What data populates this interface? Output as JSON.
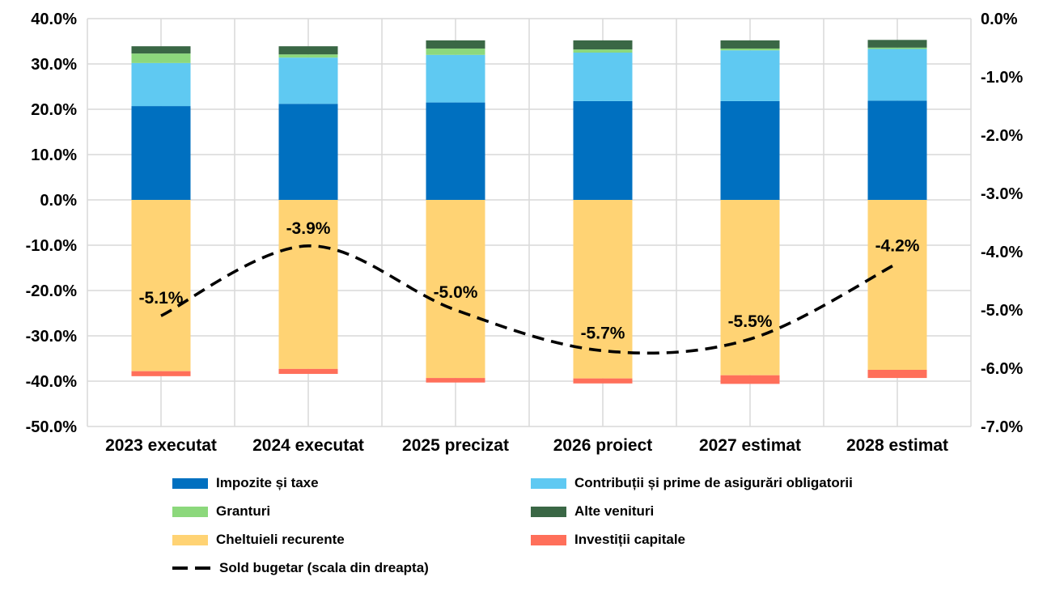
{
  "chart_data": {
    "type": "bar",
    "subtype": "stacked-bars-with-line",
    "title": "",
    "categories": [
      "2023 executat",
      "2024 executat",
      "2025 precizat",
      "2026 proiect",
      "2027 estimat",
      "2028 estimat"
    ],
    "bar_series": [
      {
        "name": "Impozite și taxe",
        "color": "#0070C0",
        "values": [
          20.7,
          21.2,
          21.5,
          21.8,
          21.8,
          21.9
        ]
      },
      {
        "name": "Contribuții și prime de asigurări obligatorii",
        "color": "#5FC9F2",
        "values": [
          9.5,
          10.2,
          10.5,
          10.7,
          11.2,
          11.4
        ]
      },
      {
        "name": "Granturi",
        "color": "#8CD87C",
        "values": [
          2.1,
          0.7,
          1.4,
          0.7,
          0.4,
          0.3
        ]
      },
      {
        "name": "Alte venituri",
        "color": "#3A6745",
        "values": [
          1.6,
          1.8,
          1.8,
          2.0,
          1.8,
          1.7
        ]
      },
      {
        "name": "Cheltuieli recurente",
        "color": "#FFD374",
        "values": [
          -37.8,
          -37.3,
          -39.3,
          -39.4,
          -38.7,
          -37.5
        ]
      },
      {
        "name": "Investiții capitale",
        "color": "#FF6F5A",
        "values": [
          -1.1,
          -1.1,
          -1.0,
          -1.1,
          -1.9,
          -1.8
        ]
      }
    ],
    "line_series": {
      "name": "Sold bugetar (scala din dreapta)",
      "color": "#000000",
      "style": "dashed",
      "axis": "right",
      "values": [
        -5.1,
        -3.9,
        -5.0,
        -5.7,
        -5.5,
        -4.2
      ],
      "point_labels": [
        "-5.1%",
        "-3.9%",
        "-5.0%",
        "-5.7%",
        "-5.5%",
        "-4.2%"
      ]
    },
    "left_axis": {
      "min": -50,
      "max": 40,
      "step": 10,
      "tick_labels": [
        "40.0%",
        "30.0%",
        "20.0%",
        "10.0%",
        "0.0%",
        "-10.0%",
        "-20.0%",
        "-30.0%",
        "-40.0%",
        "-50.0%"
      ]
    },
    "right_axis": {
      "min": -7,
      "max": 0,
      "step": 1,
      "tick_labels": [
        "0.0%",
        "-1.0%",
        "-2.0%",
        "-3.0%",
        "-4.0%",
        "-5.0%",
        "-6.0%",
        "-7.0%"
      ]
    },
    "grid": {
      "show": true,
      "color": "#D9D9D9"
    },
    "legend": {
      "position": "bottom",
      "columns": 2,
      "entries": [
        {
          "label": "Impozite și taxe",
          "color": "#0070C0",
          "marker": "rect"
        },
        {
          "label": "Contribuții și prime de asigurări obligatorii",
          "color": "#5FC9F2",
          "marker": "rect"
        },
        {
          "label": "Granturi",
          "color": "#8CD87C",
          "marker": "rect"
        },
        {
          "label": "Alte venituri",
          "color": "#3A6745",
          "marker": "rect"
        },
        {
          "label": "Cheltuieli recurente",
          "color": "#FFD374",
          "marker": "rect"
        },
        {
          "label": "Investiții capitale",
          "color": "#FF6F5A",
          "marker": "rect"
        },
        {
          "label": "Sold bugetar (scala din dreapta)",
          "color": "#000000",
          "marker": "dash"
        }
      ]
    }
  }
}
